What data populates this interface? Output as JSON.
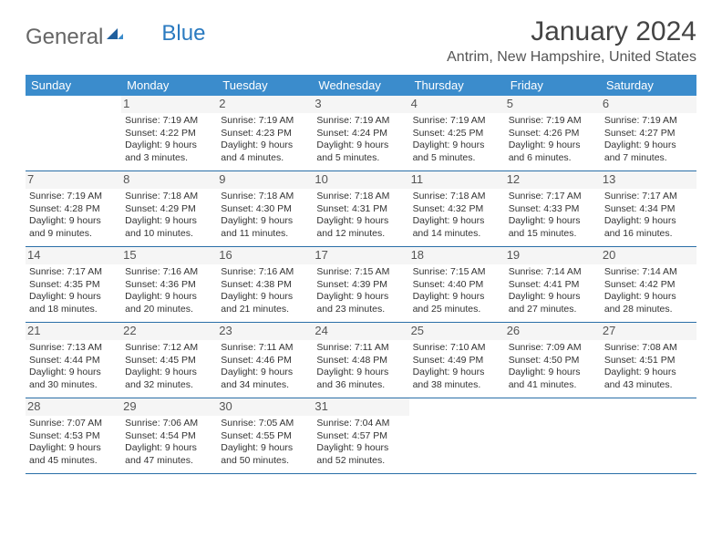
{
  "logo": {
    "word1": "General",
    "word2": "Blue"
  },
  "title": "January 2024",
  "location": "Antrim, New Hampshire, United States",
  "colors": {
    "header_bg": "#3b8ccc",
    "header_text": "#ffffff",
    "divider": "#2a6fa8",
    "num_bg": "#f5f5f5",
    "body_text": "#333333"
  },
  "day_names": [
    "Sunday",
    "Monday",
    "Tuesday",
    "Wednesday",
    "Thursday",
    "Friday",
    "Saturday"
  ],
  "weeks": [
    [
      {
        "day": "",
        "empty": true
      },
      {
        "day": "1",
        "sunrise": "7:19 AM",
        "sunset": "4:22 PM",
        "daylight": "9 hours and 3 minutes."
      },
      {
        "day": "2",
        "sunrise": "7:19 AM",
        "sunset": "4:23 PM",
        "daylight": "9 hours and 4 minutes."
      },
      {
        "day": "3",
        "sunrise": "7:19 AM",
        "sunset": "4:24 PM",
        "daylight": "9 hours and 5 minutes."
      },
      {
        "day": "4",
        "sunrise": "7:19 AM",
        "sunset": "4:25 PM",
        "daylight": "9 hours and 5 minutes."
      },
      {
        "day": "5",
        "sunrise": "7:19 AM",
        "sunset": "4:26 PM",
        "daylight": "9 hours and 6 minutes."
      },
      {
        "day": "6",
        "sunrise": "7:19 AM",
        "sunset": "4:27 PM",
        "daylight": "9 hours and 7 minutes."
      }
    ],
    [
      {
        "day": "7",
        "sunrise": "7:19 AM",
        "sunset": "4:28 PM",
        "daylight": "9 hours and 9 minutes."
      },
      {
        "day": "8",
        "sunrise": "7:18 AM",
        "sunset": "4:29 PM",
        "daylight": "9 hours and 10 minutes."
      },
      {
        "day": "9",
        "sunrise": "7:18 AM",
        "sunset": "4:30 PM",
        "daylight": "9 hours and 11 minutes."
      },
      {
        "day": "10",
        "sunrise": "7:18 AM",
        "sunset": "4:31 PM",
        "daylight": "9 hours and 12 minutes."
      },
      {
        "day": "11",
        "sunrise": "7:18 AM",
        "sunset": "4:32 PM",
        "daylight": "9 hours and 14 minutes."
      },
      {
        "day": "12",
        "sunrise": "7:17 AM",
        "sunset": "4:33 PM",
        "daylight": "9 hours and 15 minutes."
      },
      {
        "day": "13",
        "sunrise": "7:17 AM",
        "sunset": "4:34 PM",
        "daylight": "9 hours and 16 minutes."
      }
    ],
    [
      {
        "day": "14",
        "sunrise": "7:17 AM",
        "sunset": "4:35 PM",
        "daylight": "9 hours and 18 minutes."
      },
      {
        "day": "15",
        "sunrise": "7:16 AM",
        "sunset": "4:36 PM",
        "daylight": "9 hours and 20 minutes."
      },
      {
        "day": "16",
        "sunrise": "7:16 AM",
        "sunset": "4:38 PM",
        "daylight": "9 hours and 21 minutes."
      },
      {
        "day": "17",
        "sunrise": "7:15 AM",
        "sunset": "4:39 PM",
        "daylight": "9 hours and 23 minutes."
      },
      {
        "day": "18",
        "sunrise": "7:15 AM",
        "sunset": "4:40 PM",
        "daylight": "9 hours and 25 minutes."
      },
      {
        "day": "19",
        "sunrise": "7:14 AM",
        "sunset": "4:41 PM",
        "daylight": "9 hours and 27 minutes."
      },
      {
        "day": "20",
        "sunrise": "7:14 AM",
        "sunset": "4:42 PM",
        "daylight": "9 hours and 28 minutes."
      }
    ],
    [
      {
        "day": "21",
        "sunrise": "7:13 AM",
        "sunset": "4:44 PM",
        "daylight": "9 hours and 30 minutes."
      },
      {
        "day": "22",
        "sunrise": "7:12 AM",
        "sunset": "4:45 PM",
        "daylight": "9 hours and 32 minutes."
      },
      {
        "day": "23",
        "sunrise": "7:11 AM",
        "sunset": "4:46 PM",
        "daylight": "9 hours and 34 minutes."
      },
      {
        "day": "24",
        "sunrise": "7:11 AM",
        "sunset": "4:48 PM",
        "daylight": "9 hours and 36 minutes."
      },
      {
        "day": "25",
        "sunrise": "7:10 AM",
        "sunset": "4:49 PM",
        "daylight": "9 hours and 38 minutes."
      },
      {
        "day": "26",
        "sunrise": "7:09 AM",
        "sunset": "4:50 PM",
        "daylight": "9 hours and 41 minutes."
      },
      {
        "day": "27",
        "sunrise": "7:08 AM",
        "sunset": "4:51 PM",
        "daylight": "9 hours and 43 minutes."
      }
    ],
    [
      {
        "day": "28",
        "sunrise": "7:07 AM",
        "sunset": "4:53 PM",
        "daylight": "9 hours and 45 minutes."
      },
      {
        "day": "29",
        "sunrise": "7:06 AM",
        "sunset": "4:54 PM",
        "daylight": "9 hours and 47 minutes."
      },
      {
        "day": "30",
        "sunrise": "7:05 AM",
        "sunset": "4:55 PM",
        "daylight": "9 hours and 50 minutes."
      },
      {
        "day": "31",
        "sunrise": "7:04 AM",
        "sunset": "4:57 PM",
        "daylight": "9 hours and 52 minutes."
      },
      {
        "day": "",
        "empty": true
      },
      {
        "day": "",
        "empty": true
      },
      {
        "day": "",
        "empty": true
      }
    ]
  ],
  "labels": {
    "sunrise": "Sunrise:",
    "sunset": "Sunset:",
    "daylight": "Daylight:"
  }
}
